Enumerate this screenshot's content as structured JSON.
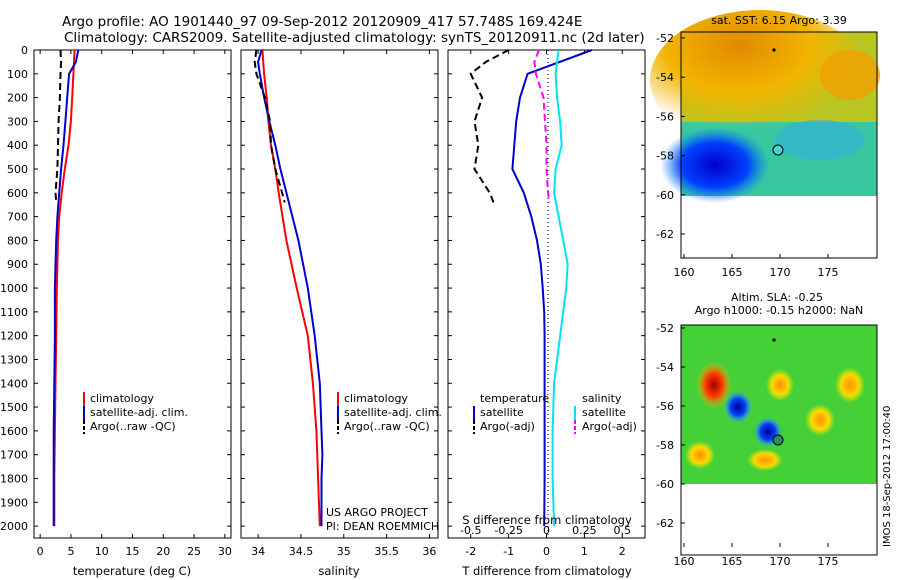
{
  "title_line1": "Argo profile: AO 1901440_97 09-Sep-2012 20120909_417 57.748S 169.424E",
  "title_line2": "Climatology: CARS2009. Satellite-adjusted climatology: synTS_20120911.nc (2d later)",
  "depth_ticks": [
    "0",
    "100",
    "200",
    "300",
    "400",
    "500",
    "600",
    "700",
    "800",
    "900",
    "1000",
    "1100",
    "1200",
    "1300",
    "1400",
    "1500",
    "1600",
    "1700",
    "1800",
    "1900",
    "2000"
  ],
  "legend_main": {
    "climatology": "climatology",
    "satellite": "satellite-adj. clim.",
    "argo": "Argo(..raw -QC)"
  },
  "legend_diff": {
    "temperature": "temperature",
    "salinity": "salinity",
    "sat_t": "satellite",
    "argo_t": "Argo(-adj)",
    "sat_s": "satellite",
    "argo_s": "Argo(-adj)"
  },
  "credit": {
    "line1": "US ARGO PROJECT",
    "line2": "PI: DEAN ROEMMICH"
  },
  "diff_top_label": "S difference from climatology",
  "map_sst": {
    "title": "sat. SST: 6.15 Argo: 3.39",
    "yticks": [
      "-52",
      "-54",
      "-56",
      "-58",
      "-60",
      "-62"
    ],
    "xticks": [
      "160",
      "165",
      "170",
      "175"
    ]
  },
  "map_sla": {
    "title1": "Altim. SLA: -0.25",
    "title2": "Argo h1000: -0.15 h2000: NaN",
    "yticks": [
      "-52",
      "-54",
      "-56",
      "-58",
      "-60",
      "-62"
    ],
    "xticks": [
      "160",
      "165",
      "170",
      "175"
    ]
  },
  "stamp": "IMOS 18-Sep-2012 17:00:40",
  "colors": {
    "climatology": "#ff0000",
    "satellite": "#0000cc",
    "argo": "#000000",
    "sat_salinity": "#00e5ee",
    "argo_salinity": "#ff00ff"
  },
  "chart_data": [
    {
      "type": "line",
      "xlabel": "temperature (deg C)",
      "ylabel": "",
      "xlim": [
        -1,
        31
      ],
      "ylim": [
        2050,
        0
      ],
      "xticks": [
        "0",
        "5",
        "10",
        "15",
        "20",
        "25",
        "30"
      ],
      "series": [
        {
          "name": "climatology",
          "color": "#ff0000",
          "depth": [
            0,
            100,
            200,
            300,
            400,
            500,
            600,
            700,
            800,
            900,
            1000,
            1200,
            1400,
            1600,
            1800,
            2000
          ],
          "values": [
            5.6,
            5.4,
            5.2,
            5.0,
            4.6,
            4.0,
            3.5,
            3.1,
            2.9,
            2.8,
            2.7,
            2.6,
            2.5,
            2.4,
            2.3,
            2.3
          ]
        },
        {
          "name": "satellite-adj. clim.",
          "color": "#0000cc",
          "depth": [
            0,
            50,
            100,
            200,
            300,
            400,
            500,
            600,
            700,
            800,
            1000,
            1200,
            1400,
            1600,
            1800,
            2000
          ],
          "values": [
            6.2,
            5.8,
            4.7,
            4.4,
            4.1,
            3.8,
            3.4,
            3.1,
            2.8,
            2.6,
            2.4,
            2.4,
            2.3,
            2.2,
            2.2,
            2.2
          ]
        },
        {
          "name": "Argo(..raw -QC)",
          "color": "#000000",
          "dash": true,
          "depth": [
            0,
            50,
            100,
            200,
            300,
            400,
            500,
            600,
            640
          ],
          "values": [
            3.3,
            3.4,
            3.3,
            3.2,
            3.0,
            2.9,
            2.8,
            2.5,
            2.6
          ]
        }
      ]
    },
    {
      "type": "line",
      "xlabel": "salinity",
      "ylabel": "",
      "xlim": [
        33.8,
        36.1
      ],
      "ylim": [
        2050,
        0
      ],
      "xticks": [
        "34",
        "34.5",
        "35",
        "35.5",
        "36"
      ],
      "series": [
        {
          "name": "climatology",
          "color": "#ff0000",
          "depth": [
            0,
            100,
            200,
            300,
            400,
            500,
            600,
            800,
            1000,
            1200,
            1400,
            1600,
            1800,
            2000
          ],
          "values": [
            34.05,
            34.07,
            34.1,
            34.12,
            34.15,
            34.2,
            34.24,
            34.33,
            34.45,
            34.58,
            34.64,
            34.68,
            34.7,
            34.72
          ]
        },
        {
          "name": "satellite-adj. clim.",
          "color": "#0000cc",
          "depth": [
            0,
            50,
            100,
            200,
            300,
            400,
            500,
            600,
            700,
            800,
            1000,
            1200,
            1400,
            1600,
            1700,
            1800,
            2000
          ],
          "values": [
            34.04,
            34.0,
            34.02,
            34.07,
            34.13,
            34.2,
            34.26,
            34.33,
            34.4,
            34.47,
            34.58,
            34.66,
            34.72,
            34.74,
            34.75,
            34.74,
            34.74
          ]
        },
        {
          "name": "Argo(..raw -QC)",
          "color": "#000000",
          "dash": true,
          "depth": [
            0,
            50,
            100,
            200,
            300,
            400,
            500,
            600,
            640
          ],
          "values": [
            33.98,
            33.96,
            33.98,
            34.08,
            34.14,
            34.15,
            34.2,
            34.28,
            34.31
          ]
        }
      ]
    },
    {
      "type": "line",
      "xlabel": "T difference from climatology",
      "ylabel": "",
      "xlim": [
        -2.6,
        2.6
      ],
      "ylim": [
        2050,
        0
      ],
      "xticks": [
        "-2",
        "-1",
        "0",
        "1",
        "2"
      ],
      "top_ticks": {
        "label": "S difference from climatology",
        "values": [
          "-0.5",
          "-0.25",
          "0",
          "0.25",
          "0.5"
        ]
      },
      "series": [
        {
          "name": "satellite",
          "quantity": "temperature",
          "color": "#0000cc",
          "depth": [
            0,
            100,
            200,
            300,
            400,
            500,
            600,
            700,
            800,
            900,
            1000,
            1100,
            1200,
            1400,
            1600,
            1800,
            2000
          ],
          "values": [
            1.2,
            -0.5,
            -0.7,
            -0.8,
            -0.85,
            -0.9,
            -0.6,
            -0.4,
            -0.25,
            -0.15,
            -0.1,
            -0.06,
            -0.05,
            -0.05,
            -0.05,
            -0.05,
            -0.06
          ]
        },
        {
          "name": "Argo(-adj)",
          "quantity": "temperature",
          "color": "#000000",
          "dash": true,
          "depth": [
            0,
            50,
            100,
            200,
            300,
            400,
            500,
            600,
            640
          ],
          "values": [
            -1.0,
            -1.6,
            -2.0,
            -1.7,
            -1.9,
            -1.8,
            -1.9,
            -1.5,
            -1.4
          ]
        },
        {
          "name": "satellite",
          "quantity": "salinity",
          "color": "#00e5ee",
          "depth": [
            0,
            100,
            200,
            300,
            400,
            500,
            600,
            700,
            800,
            900,
            1000,
            1100,
            1200,
            1400,
            1600,
            1800,
            2000
          ],
          "values": [
            0.08,
            0.06,
            0.07,
            0.09,
            0.1,
            0.06,
            0.05,
            0.08,
            0.11,
            0.14,
            0.13,
            0.11,
            0.09,
            0.05,
            0.04,
            0.04,
            0.05
          ]
        },
        {
          "name": "Argo(-adj)",
          "quantity": "salinity",
          "color": "#ff00ff",
          "dash": true,
          "depth": [
            0,
            50,
            100,
            200,
            300,
            400,
            500,
            600,
            640
          ],
          "values": [
            -0.05,
            -0.08,
            -0.07,
            -0.02,
            -0.01,
            0.0,
            0.0,
            0.01,
            0.02
          ]
        }
      ]
    }
  ]
}
